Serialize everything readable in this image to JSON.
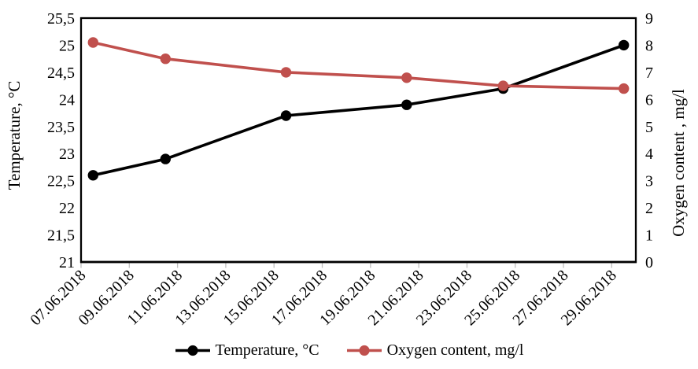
{
  "chart_data": {
    "type": "line",
    "title": "",
    "x_tick_labels": [
      "07.06.2018",
      "09.06.2018",
      "11.06.2018",
      "13.06.2018",
      "15.06.2018",
      "17.06.2018",
      "19.06.2018",
      "21.06.2018",
      "23.06.2018",
      "25.06.2018",
      "27.06.2018",
      "29.06.2018"
    ],
    "x_range_days": {
      "first_label_day": 7,
      "total_days": 23,
      "label_step_days": 2
    },
    "points_x_dates": [
      "07.06.2018",
      "10.06.2018",
      "15.06.2018",
      "20.06.2018",
      "24.06.2018",
      "29.06.2018"
    ],
    "points_x_days": [
      7,
      10,
      15,
      20,
      24,
      29
    ],
    "series": [
      {
        "name": "Temperature, °C",
        "slug": "temperature",
        "axis": "left",
        "color": "#000000",
        "values": [
          22.6,
          22.9,
          23.7,
          23.9,
          24.2,
          25.0
        ]
      },
      {
        "name": "Oxygen content, mg/l",
        "slug": "oxygen-content",
        "axis": "right",
        "color": "#C0504D",
        "values": [
          8.1,
          7.5,
          7.0,
          6.8,
          6.5,
          6.4
        ]
      }
    ],
    "left_axis": {
      "title": "Temperature, °C",
      "min": 21,
      "max": 25.5,
      "step": 0.5,
      "tick_labels": [
        "25,5",
        "25",
        "24,5",
        "24",
        "23,5",
        "23",
        "22,5",
        "22",
        "21,5",
        "21"
      ]
    },
    "right_axis": {
      "title": "Oxygen content , mg/l",
      "min": 0,
      "max": 9,
      "step": 1,
      "tick_labels": [
        "9",
        "8",
        "7",
        "6",
        "5",
        "4",
        "3",
        "2",
        "1",
        "0"
      ]
    },
    "legend": {
      "position": "bottom",
      "items": [
        {
          "label": "Temperature, °C",
          "color": "#000000"
        },
        {
          "label": "Oxygen content, mg/l",
          "color": "#C0504D"
        }
      ]
    },
    "grid": false,
    "colors": {
      "axis_border": "#000000",
      "tick_mark": "#BFBFBF",
      "background": "#FFFFFF"
    }
  }
}
